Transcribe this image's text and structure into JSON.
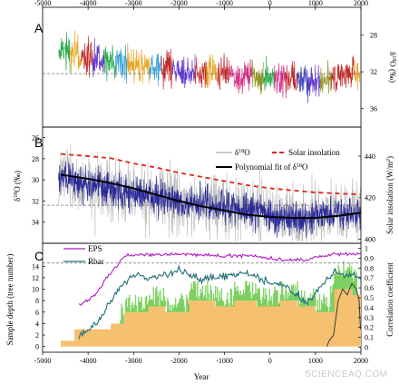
{
  "chart_data": [
    {
      "panel": "A",
      "type": "line",
      "ylabel": "δ18O (‰)",
      "xlim": [
        -5000,
        2000
      ],
      "ylim": [
        38,
        25
      ],
      "y_axis_side": "right",
      "yticks": [
        28,
        32,
        36
      ],
      "xticks_top": [
        -5000,
        -4000,
        -3000,
        -2000,
        -1000,
        0,
        1000,
        2000
      ],
      "xticklabels_top": [
        "-5000",
        "-4000",
        "-3000",
        "-2000",
        "-1000",
        "0",
        "1000",
        "2000"
      ],
      "reference_line": 32.2,
      "series_colors": [
        "#1aa340",
        "#d61f7c",
        "#5b2dcf",
        "#e6a21a",
        "#2a9bd6",
        "#8c8c1a",
        "#c02020",
        "#3a3ab8"
      ],
      "series": [
        {
          "x": [
            -4700,
            -4400,
            -4100,
            -3800,
            -3500,
            -3200,
            -2900,
            -2600,
            -2300,
            -2000,
            -1700,
            -1400,
            -1100,
            -800,
            -500,
            -200,
            100,
            400,
            700,
            1000,
            1300,
            1600,
            1900
          ],
          "values": [
            29.4,
            29.8,
            30.4,
            30.6,
            30.9,
            31.2,
            31.3,
            31.4,
            31.6,
            31.8,
            32.0,
            32.1,
            32.2,
            32.3,
            32.5,
            32.6,
            32.7,
            32.9,
            33.0,
            33.0,
            32.8,
            32.4,
            32.0
          ]
        }
      ]
    },
    {
      "panel": "B",
      "type": "line",
      "ylabel": "δ18O (‰)",
      "ylabel_right": "Solar insolation (W/m²)",
      "xlim": [
        -5000,
        2000
      ],
      "ylim": [
        36,
        25
      ],
      "yticks": [
        26,
        28,
        30,
        32,
        34
      ],
      "ylim_right": [
        398,
        454
      ],
      "yticks_right": [
        400,
        420,
        440
      ],
      "reference_line": 32.4,
      "legend": [
        "δ18O",
        "Solar insolation",
        "Polynomial fit of δ18O"
      ],
      "series": [
        {
          "name": "δ18O",
          "color": "#2a2a9a",
          "x": [
            -4700,
            -4400,
            -4100,
            -3800,
            -3500,
            -3200,
            -2900,
            -2600,
            -2300,
            -2000,
            -1700,
            -1400,
            -1100,
            -800,
            -500,
            -200,
            100,
            400,
            700,
            1000,
            1300,
            1600,
            1900
          ],
          "values": [
            29.5,
            29.9,
            30.3,
            30.5,
            30.9,
            31.3,
            31.2,
            31.3,
            31.8,
            32.2,
            32.4,
            32.2,
            32.6,
            32.8,
            33.0,
            33.2,
            33.4,
            33.5,
            33.6,
            33.5,
            33.4,
            33.3,
            33.1
          ]
        },
        {
          "name": "Solar insolation",
          "color": "#e0241c",
          "x": [
            -4600,
            -4000,
            -3500,
            -3000,
            -2500,
            -2000,
            -1500,
            -1000,
            -500,
            0,
            500,
            1000,
            1500,
            2000
          ],
          "values": [
            441,
            440,
            439,
            436.5,
            434.5,
            432,
            430,
            428,
            426,
            424.5,
            423.5,
            422.5,
            422,
            421.5
          ]
        },
        {
          "name": "Polynomial fit of δ18O",
          "color": "#000000",
          "x": [
            -4600,
            -4000,
            -3500,
            -3000,
            -2500,
            -2000,
            -1500,
            -1000,
            -500,
            0,
            500,
            1000,
            1500,
            2000
          ],
          "values": [
            29.5,
            29.9,
            30.3,
            30.8,
            31.4,
            32.0,
            32.5,
            32.9,
            33.3,
            33.5,
            33.6,
            33.6,
            33.4,
            33.1
          ]
        }
      ]
    },
    {
      "panel": "C",
      "type": "area",
      "xlabel": "Year",
      "ylabel": "Sample depth (tree number)",
      "ylabel_right": "Correlation coefficient",
      "xlim": [
        -5000,
        2000
      ],
      "xticks": [
        -5000,
        -4000,
        -3000,
        -2000,
        -1000,
        0,
        1000,
        2000
      ],
      "xticklabels": [
        "-5000",
        "-4000",
        "-3000",
        "-2000",
        "-1000",
        "0",
        "1000",
        "2000"
      ],
      "ylim": [
        -1,
        18
      ],
      "yticks": [
        0,
        2,
        4,
        6,
        8,
        10,
        12,
        14
      ],
      "ylim_right": [
        -0.05,
        1.05
      ],
      "yticks_right": [
        0,
        0.1,
        0.2,
        0.3,
        0.4,
        0.5,
        0.6,
        0.7,
        0.8,
        0.9,
        1
      ],
      "yticklabels_right": [
        "0",
        "0.1",
        "0.2",
        "0.3",
        "0.4",
        "0.5",
        "0.6",
        "0.7",
        "0.8",
        "0.9",
        "1"
      ],
      "reference_line_right": 0.85,
      "legend": [
        "EPS",
        "Rbar"
      ],
      "series": [
        {
          "name": "Sample depth",
          "color": "#f5c070",
          "x": [
            -4600,
            -4300,
            -4300,
            -3500,
            -3500,
            -3200,
            -3200,
            -2700,
            -2700,
            -2300,
            -2300,
            -1800,
            -1800,
            -1200,
            -1200,
            -800,
            -800,
            -300,
            -300,
            200,
            200,
            600,
            600,
            1000,
            1000,
            1400,
            1400,
            1800,
            1800,
            2000
          ],
          "values": [
            1,
            1,
            3,
            3,
            4,
            4,
            6,
            6,
            7,
            7,
            6,
            6,
            8,
            8,
            7,
            7,
            8,
            8,
            7,
            7,
            8,
            8,
            7,
            7,
            6,
            6,
            10,
            10,
            9,
            9
          ]
        },
        {
          "name": "EPS",
          "color": "#b21fc2",
          "x": [
            -4200,
            -4000,
            -3800,
            -3600,
            -3400,
            -3200,
            -3000,
            -2500,
            -2000,
            -1500,
            -1000,
            -500,
            0,
            400,
            800,
            1000,
            1400,
            2000
          ],
          "values": [
            0.42,
            0.48,
            0.55,
            0.7,
            0.8,
            0.92,
            0.93,
            0.94,
            0.94,
            0.93,
            0.92,
            0.93,
            0.9,
            0.88,
            0.88,
            0.91,
            0.94,
            0.94
          ]
        },
        {
          "name": "Rbar",
          "color": "#1f6f78",
          "x": [
            -4200,
            -4000,
            -3800,
            -3600,
            -3400,
            -3200,
            -3000,
            -2500,
            -2000,
            -1500,
            -1000,
            -500,
            0,
            400,
            800,
            1000,
            1400,
            2000
          ],
          "values": [
            0.1,
            0.18,
            0.25,
            0.38,
            0.55,
            0.65,
            0.72,
            0.7,
            0.78,
            0.68,
            0.72,
            0.74,
            0.66,
            0.6,
            0.45,
            0.55,
            0.75,
            0.7
          ]
        }
      ]
    }
  ],
  "watermark": "SCIENCEAQ.COM"
}
